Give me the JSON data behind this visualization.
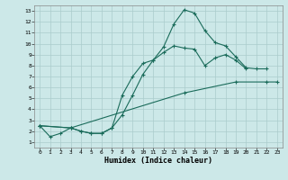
{
  "title": "",
  "xlabel": "Humidex (Indice chaleur)",
  "bg_color": "#cce8e8",
  "grid_color": "#aacccc",
  "line_color": "#1a6b5a",
  "xlim": [
    -0.5,
    23.5
  ],
  "ylim": [
    0.5,
    13.5
  ],
  "xticks": [
    0,
    1,
    2,
    3,
    4,
    5,
    6,
    7,
    8,
    9,
    10,
    11,
    12,
    13,
    14,
    15,
    16,
    17,
    18,
    19,
    20,
    21,
    22,
    23
  ],
  "yticks": [
    1,
    2,
    3,
    4,
    5,
    6,
    7,
    8,
    9,
    10,
    11,
    12,
    13
  ],
  "line1_x": [
    0,
    1,
    2,
    3,
    4,
    5,
    6,
    7,
    8,
    9,
    10,
    11,
    12,
    13,
    14,
    15,
    16,
    17,
    18,
    19,
    20,
    21,
    22
  ],
  "line1_y": [
    2.5,
    1.5,
    1.8,
    2.3,
    2.0,
    1.8,
    1.8,
    2.3,
    5.3,
    7.0,
    8.2,
    8.5,
    9.7,
    11.8,
    13.1,
    12.8,
    11.2,
    10.1,
    9.8,
    8.8,
    7.8,
    7.7,
    7.7
  ],
  "line2_x": [
    0,
    3,
    4,
    5,
    6,
    7,
    8,
    9,
    10,
    11,
    12,
    13,
    14,
    15,
    16,
    17,
    18,
    19,
    20
  ],
  "line2_y": [
    2.5,
    2.3,
    2.0,
    1.8,
    1.8,
    2.3,
    3.5,
    5.3,
    7.2,
    8.5,
    9.2,
    9.8,
    9.6,
    9.5,
    8.0,
    8.7,
    9.0,
    8.5,
    7.7
  ],
  "line3_x": [
    0,
    3,
    14,
    19,
    22,
    23
  ],
  "line3_y": [
    2.5,
    2.3,
    5.5,
    6.5,
    6.5,
    6.5
  ]
}
